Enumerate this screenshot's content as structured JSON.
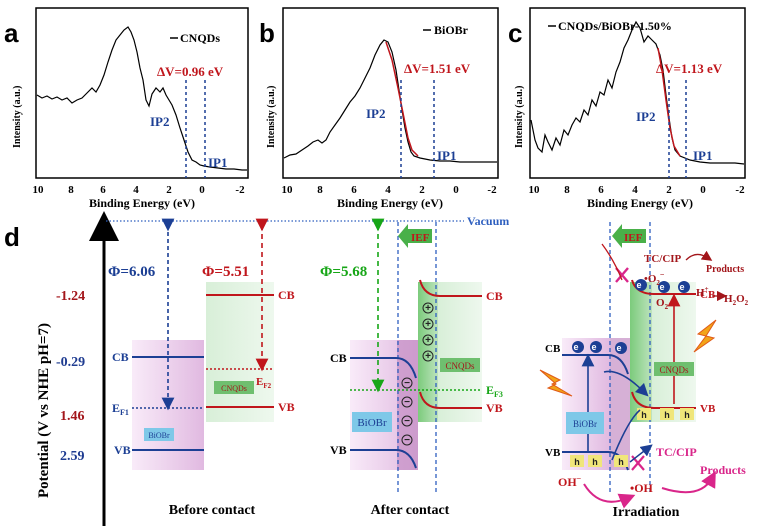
{
  "panels": {
    "a": {
      "letter": "a",
      "legend": "CNQDs",
      "delta_v": "ΔV=0.96 eV",
      "ip2": "IP2",
      "ip1": "IP1",
      "ylabel": "Intensity (a.u.)",
      "xlabel": "Binding Energy (eV)",
      "xticks": [
        "10",
        "8",
        "6",
        "4",
        "2",
        "0",
        "-2"
      ]
    },
    "b": {
      "letter": "b",
      "legend": "BiOBr",
      "delta_v": "ΔV=1.51 eV",
      "ip2": "IP2",
      "ip1": "IP1",
      "ylabel": "Intensity (a.u.)",
      "xlabel": "Binding Energy (eV)",
      "xticks": [
        "10",
        "8",
        "6",
        "4",
        "2",
        "0",
        "-2"
      ]
    },
    "c": {
      "letter": "c",
      "legend": "CNQDs/BiOBr-1.50%",
      "delta_v": "ΔV=1.13 eV",
      "ip2": "IP2",
      "ip1": "IP1",
      "ylabel": "Intensity (a.u.)",
      "xlabel": "Binding Energy (eV)",
      "xticks": [
        "10",
        "8",
        "6",
        "4",
        "2",
        "0",
        "-2"
      ]
    },
    "d": {
      "letter": "d",
      "yaxis_label": "Potential (V vs NHE pH=7)",
      "potentials": [
        "-1.24",
        "-0.29",
        "1.46",
        "2.59"
      ],
      "vacuum": "Vacuum",
      "before": {
        "phi_biobr": "Φ=6.06",
        "phi_cnqds": "Φ=5.51",
        "cb": "CB",
        "vb": "VB",
        "ef1": "E",
        "ef1_sub": "F1",
        "ef2": "E",
        "ef2_sub": "F2",
        "biobr": "BiOBr",
        "cnqds": "CNQDs",
        "title": "Before contact"
      },
      "after": {
        "phi": "Φ=5.68",
        "ief": "IEF",
        "cb_left": "CB",
        "vb_left": "VB",
        "cb_right": "CB",
        "vb_right": "VB",
        "ef3": "E",
        "ef3_sub": "F3",
        "biobr": "BiOBr",
        "cnqds": "CNQDs",
        "title": "After contact"
      },
      "irradiation": {
        "ief": "IEF",
        "tc_cip_top": "TC/CIP",
        "products_top": "Products",
        "o2_rad": "•O",
        "o2_rad_sup": "2",
        "o2_rad_charge": "−",
        "o2": "O",
        "o2_sub": "2",
        "h_plus": "H",
        "h_sup": "+",
        "h2o2": "H",
        "h2o2_a": "2",
        "h2o2_b": "O",
        "h2o2_c": "2",
        "cb_left": "CB",
        "vb_left": "VB",
        "cb_right": "CB",
        "vb_right": "VB",
        "electron": "e",
        "electron_sup": "−",
        "hole": "h",
        "hole_sup": "+",
        "biobr": "BiOBr",
        "cnqds": "CNQDs",
        "oh_minus": "OH",
        "oh_minus_sup": "−",
        "oh_rad": "•OH",
        "tc_cip_bottom": "TC/CIP",
        "products_bottom": "Products",
        "title": "Irradiation"
      }
    }
  },
  "colors": {
    "blue": "#1c3f94",
    "red": "#c0161c",
    "green": "#17a617",
    "navy_label": "#1f3c91",
    "dark_red_label": "#a3161b",
    "pink_band": "#e6c3e6",
    "green_band": "#cfe8cf",
    "dashed_blue": "#2e5fbf",
    "magenta": "#d9268a"
  }
}
